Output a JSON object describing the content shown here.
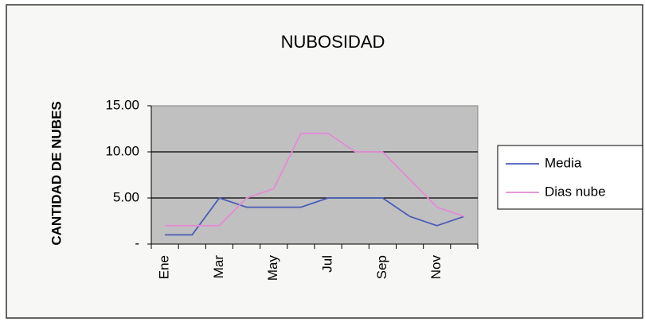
{
  "chart_data": {
    "type": "line",
    "title": "NUBOSIDAD",
    "y_label": "CANTIDAD DE NUBES",
    "categories": [
      "Ene",
      null,
      "Mar",
      null,
      "May",
      null,
      "Jul",
      null,
      "Sep",
      null,
      "Nov",
      null
    ],
    "series": [
      {
        "name": "Media",
        "color": "#4a5cb8",
        "values": [
          1,
          1,
          5,
          4,
          4,
          4,
          5,
          5,
          5,
          3,
          2,
          3
        ]
      },
      {
        "name": "Dias nube",
        "color": "#e58ad8",
        "values": [
          2,
          2,
          2,
          5,
          6,
          12,
          12,
          10,
          10,
          7,
          4,
          3
        ]
      }
    ],
    "ylim": [
      0,
      15
    ],
    "yticks": [
      {
        "value": 0,
        "label": "-"
      },
      {
        "value": 5,
        "label": "5.00"
      },
      {
        "value": 10,
        "label": "10.00"
      },
      {
        "value": 15,
        "label": "15.00"
      }
    ],
    "grid": true,
    "legend": "right"
  }
}
